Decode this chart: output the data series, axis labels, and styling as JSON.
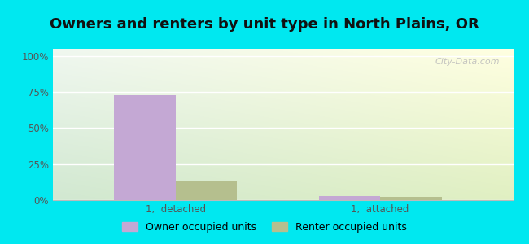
{
  "title": "Owners and renters by unit type in North Plains, OR",
  "categories": [
    "1,  detached",
    "1,  attached"
  ],
  "owner_values": [
    73,
    3
  ],
  "renter_values": [
    13,
    2
  ],
  "owner_color": "#c4a8d4",
  "renter_color": "#b5bf8e",
  "cyan_bg": "#00e8f0",
  "yticks": [
    0,
    25,
    50,
    75,
    100
  ],
  "ytick_labels": [
    "0%",
    "25%",
    "50%",
    "75%",
    "100%"
  ],
  "legend_owner": "Owner occupied units",
  "legend_renter": "Renter occupied units",
  "bar_width": 0.3,
  "watermark": "City-Data.com",
  "title_fontsize": 13,
  "tick_fontsize": 8.5,
  "legend_fontsize": 9
}
